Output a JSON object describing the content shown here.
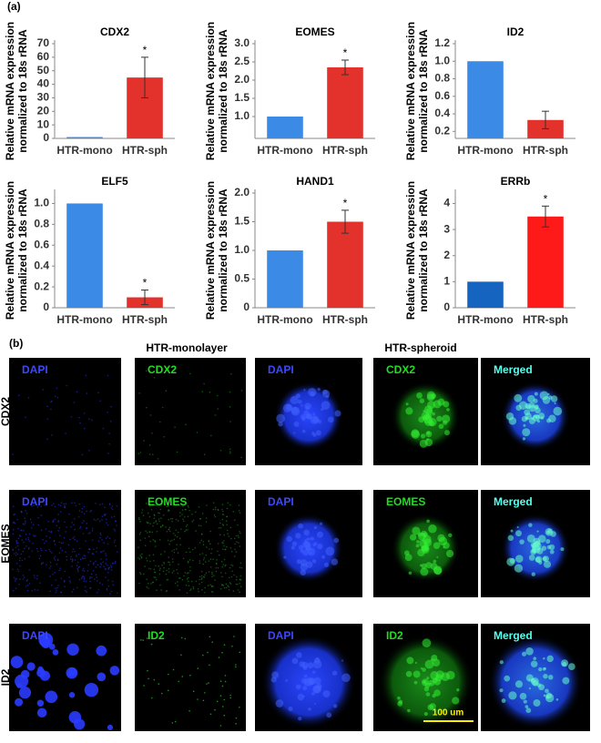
{
  "panel_a_label": "(a)",
  "chart_data": [
    {
      "type": "bar",
      "title": "CDX2",
      "ylabel": [
        "Relative mRNA expression",
        "normalized to 18s rRNA"
      ],
      "categories": [
        "HTR-mono",
        "HTR-sph"
      ],
      "values": [
        1,
        45
      ],
      "errors": [
        null,
        15
      ],
      "annotations": [
        null,
        "*"
      ],
      "colors": [
        "#3b8ae6",
        "#e3322b"
      ],
      "ylim": [
        0,
        70
      ],
      "yticks": [
        0,
        10,
        20,
        30,
        40,
        50,
        60,
        70
      ]
    },
    {
      "type": "bar",
      "title": "EOMES",
      "ylabel": [
        "Relative mRNA expression",
        "normalized to 18s rRNA"
      ],
      "categories": [
        "HTR-mono",
        "HTR-sph"
      ],
      "values": [
        1,
        2.35
      ],
      "errors": [
        null,
        0.2
      ],
      "annotations": [
        null,
        "*"
      ],
      "colors": [
        "#3b8ae6",
        "#e3322b"
      ],
      "ylim": [
        0.4,
        3
      ],
      "yticks": [
        {
          "value": 1,
          "label": "1.0"
        },
        1.5,
        {
          "value": 2,
          "label": "2.0"
        },
        2.5,
        {
          "value": 3,
          "label": "3.0"
        }
      ]
    },
    {
      "type": "bar",
      "title": "ID2",
      "ylabel": [
        "Relative mRNA expression",
        "normalized to 18s rRNA"
      ],
      "categories": [
        "HTR-mono",
        "HTR-sph"
      ],
      "values": [
        1,
        0.33
      ],
      "errors": [
        null,
        0.1
      ],
      "annotations": [
        null,
        null
      ],
      "colors": [
        "#3b8ae6",
        "#e3322b"
      ],
      "ylim": [
        0.12,
        1.2
      ],
      "yticks": [
        0.2,
        0.4,
        0.6,
        0.8,
        {
          "value": 1,
          "label": "1.0"
        },
        1.2
      ]
    },
    {
      "type": "bar",
      "title": "ELF5",
      "ylabel": [
        "Relative mRNA expression",
        "normalized to 18s rRNA"
      ],
      "categories": [
        "HTR-mono",
        "HTR-sph"
      ],
      "values": [
        1,
        0.1
      ],
      "errors": [
        null,
        0.07
      ],
      "annotations": [
        null,
        "*"
      ],
      "colors": [
        "#3b8ae6",
        "#e3322b"
      ],
      "ylim": [
        0,
        1.1
      ],
      "yticks": [
        0,
        0.2,
        0.4,
        0.6,
        0.8,
        {
          "value": 1,
          "label": "1.0"
        }
      ]
    },
    {
      "type": "bar",
      "title": "HAND1",
      "ylabel": [
        "Relative mRNA expression",
        "normalized to 18s rRNA"
      ],
      "categories": [
        "HTR-mono",
        "HTR-sph"
      ],
      "values": [
        1,
        1.5
      ],
      "errors": [
        null,
        0.2
      ],
      "annotations": [
        null,
        "*"
      ],
      "colors": [
        "#3b8ae6",
        "#e3322b"
      ],
      "ylim": [
        0,
        2
      ],
      "yticks": [
        0,
        0.5,
        {
          "value": 1,
          "label": "1.0"
        },
        1.5,
        {
          "value": 2,
          "label": "2.0"
        }
      ]
    },
    {
      "type": "bar",
      "title": "ERRb",
      "ylabel": [
        "Relative mRNA expression",
        "normalized to 18s rRNA"
      ],
      "categories": [
        "HTR-mono",
        "HTR-sph"
      ],
      "values": [
        1,
        3.5
      ],
      "errors": [
        null,
        0.4
      ],
      "annotations": [
        null,
        "*"
      ],
      "colors": [
        "#1565c0",
        "#ff1a1a"
      ],
      "ylim": [
        0,
        4.4
      ],
      "yticks": [
        0,
        1,
        2,
        3,
        4
      ]
    }
  ],
  "panel_b": {
    "label": "(b)",
    "group_labels": [
      "HTR-monolayer",
      "HTR-spheroid"
    ],
    "rows": [
      {
        "name": "CDX2",
        "panels": [
          "DAPI",
          "CDX2",
          "DAPI",
          "CDX2",
          "Merged"
        ]
      },
      {
        "name": "EOMES",
        "panels": [
          "DAPI",
          "EOMES",
          "DAPI",
          "EOMES",
          "Merged"
        ]
      },
      {
        "name": "ID2",
        "panels": [
          "DAPI",
          "ID2",
          "DAPI",
          "ID2",
          "Merged"
        ]
      }
    ],
    "scale_bar": "100 um"
  }
}
